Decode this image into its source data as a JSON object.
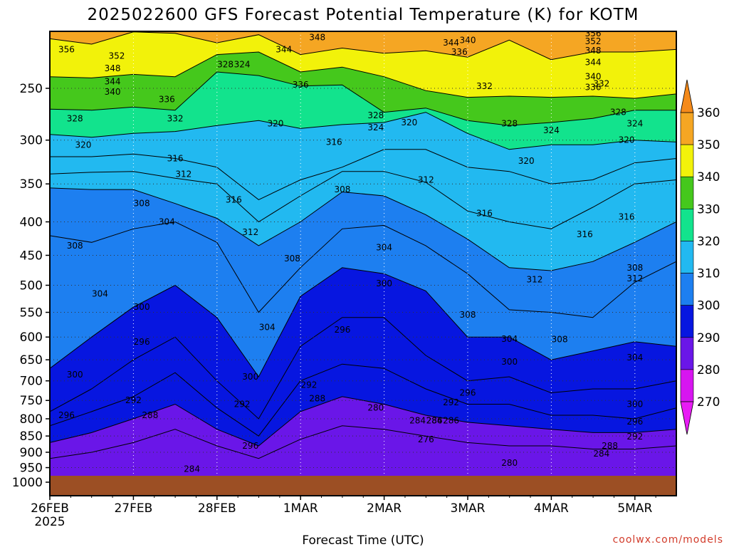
{
  "chart_data": {
    "type": "contour",
    "title": "2025022600 GFS Forecast Potential Temperature (K) for KOTM",
    "xlabel": "Forecast Time (UTC)",
    "ylabel": "",
    "credit": "coolwx.com/models",
    "x_ticks": [
      "26FEB",
      "27FEB",
      "28FEB",
      "1MAR",
      "2MAR",
      "3MAR",
      "4MAR",
      "5MAR"
    ],
    "x_tick_sub": "2025",
    "xlim_days": [
      0,
      7.5
    ],
    "y_ticks": [
      250,
      300,
      350,
      400,
      450,
      500,
      550,
      600,
      650,
      700,
      750,
      800,
      850,
      900,
      950,
      1000
    ],
    "ylim_hpa": [
      1000,
      200
    ],
    "colorbar": {
      "ticks": [
        360,
        350,
        340,
        330,
        320,
        310,
        300,
        290,
        280,
        270
      ],
      "bands": [
        {
          "low": 350,
          "high": 360,
          "color": "#f5a623"
        },
        {
          "low": 340,
          "high": 350,
          "color": "#f2f20a"
        },
        {
          "low": 330,
          "high": 340,
          "color": "#45c81c"
        },
        {
          "low": 320,
          "high": 330,
          "color": "#12e38d"
        },
        {
          "low": 310,
          "high": 320,
          "color": "#22b9f0"
        },
        {
          "low": 300,
          "high": 310,
          "color": "#1d7ff0"
        },
        {
          "low": 290,
          "high": 300,
          "color": "#0716e0"
        },
        {
          "low": 280,
          "high": 290,
          "color": "#6a16e8"
        },
        {
          "low": 270,
          "high": 280,
          "color": "#d715f0"
        }
      ],
      "over_color": "#f58a1a",
      "under_color": "#e81cf5"
    },
    "surface_color": "#9c4f24",
    "series": [
      {
        "contour": 348,
        "values": [
          210,
          214,
          205,
          206,
          213,
          207,
          222,
          217,
          221,
          219,
          224,
          211,
          226,
          220,
          220,
          218
        ]
      },
      {
        "contour": 336,
        "values": [
          240,
          241,
          238,
          240,
          222,
          220,
          236,
          232,
          240,
          252,
          258,
          257,
          258,
          257,
          259,
          255
        ]
      },
      {
        "contour": 328,
        "values": [
          269,
          270,
          267,
          270,
          236,
          239,
          248,
          247,
          272,
          268,
          280,
          285,
          282,
          278,
          270,
          270
        ]
      },
      {
        "contour": 320,
        "values": [
          294,
          297,
          293,
          291,
          285,
          280,
          288,
          284,
          282,
          272,
          293,
          310,
          305,
          305,
          300,
          302
        ]
      },
      {
        "contour": 316,
        "values": [
          318,
          318,
          315,
          320,
          330,
          370,
          345,
          330,
          310,
          310,
          330,
          335,
          350,
          345,
          325,
          320
        ]
      },
      {
        "contour": 312,
        "values": [
          338,
          336,
          335,
          343,
          350,
          400,
          365,
          335,
          335,
          348,
          385,
          400,
          410,
          380,
          350,
          345
        ]
      },
      {
        "contour": 308,
        "values": [
          355,
          357,
          357,
          375,
          395,
          435,
          400,
          360,
          365,
          390,
          425,
          470,
          475,
          460,
          430,
          400
        ]
      },
      {
        "contour": 304,
        "values": [
          420,
          430,
          410,
          400,
          430,
          550,
          470,
          410,
          405,
          435,
          480,
          545,
          550,
          560,
          495,
          460
        ]
      },
      {
        "contour": 300,
        "values": [
          670,
          600,
          540,
          500,
          560,
          690,
          520,
          470,
          480,
          510,
          600,
          600,
          650,
          630,
          610,
          620
        ]
      },
      {
        "contour": 296,
        "values": [
          780,
          720,
          650,
          600,
          700,
          800,
          620,
          560,
          560,
          640,
          700,
          690,
          730,
          720,
          720,
          700
        ]
      },
      {
        "contour": 292,
        "values": [
          820,
          780,
          740,
          680,
          770,
          850,
          700,
          660,
          670,
          720,
          760,
          760,
          790,
          790,
          800,
          770
        ]
      },
      {
        "contour": 288,
        "values": [
          870,
          840,
          800,
          760,
          830,
          880,
          780,
          740,
          760,
          790,
          810,
          820,
          830,
          840,
          840,
          830
        ]
      },
      {
        "contour": 284,
        "values": [
          920,
          900,
          870,
          830,
          880,
          920,
          860,
          820,
          830,
          850,
          870,
          880,
          880,
          890,
          890,
          880
        ]
      }
    ],
    "contour_labels": [
      {
        "text": "356",
        "day": 0.2,
        "hpa": 218
      },
      {
        "text": "352",
        "day": 0.8,
        "hpa": 223
      },
      {
        "text": "348",
        "day": 0.75,
        "hpa": 233
      },
      {
        "text": "344",
        "day": 0.75,
        "hpa": 244
      },
      {
        "text": "340",
        "day": 0.75,
        "hpa": 253
      },
      {
        "text": "336",
        "day": 1.4,
        "hpa": 260
      },
      {
        "text": "332",
        "day": 1.5,
        "hpa": 278
      },
      {
        "text": "328",
        "day": 0.3,
        "hpa": 278
      },
      {
        "text": "320",
        "day": 0.4,
        "hpa": 305
      },
      {
        "text": "316",
        "day": 1.5,
        "hpa": 320
      },
      {
        "text": "312",
        "day": 1.6,
        "hpa": 338
      },
      {
        "text": "308",
        "day": 1.1,
        "hpa": 375
      },
      {
        "text": "304",
        "day": 1.4,
        "hpa": 400
      },
      {
        "text": "308",
        "day": 0.3,
        "hpa": 435
      },
      {
        "text": "304",
        "day": 0.6,
        "hpa": 515
      },
      {
        "text": "300",
        "day": 1.1,
        "hpa": 540
      },
      {
        "text": "296",
        "day": 1.1,
        "hpa": 610
      },
      {
        "text": "300",
        "day": 0.3,
        "hpa": 685
      },
      {
        "text": "292",
        "day": 1.0,
        "hpa": 750
      },
      {
        "text": "288",
        "day": 1.2,
        "hpa": 790
      },
      {
        "text": "296",
        "day": 0.2,
        "hpa": 790
      },
      {
        "text": "284",
        "day": 1.7,
        "hpa": 955
      },
      {
        "text": "344",
        "day": 2.8,
        "hpa": 218
      },
      {
        "text": "348",
        "day": 3.2,
        "hpa": 209
      },
      {
        "text": "328",
        "day": 2.1,
        "hpa": 230
      },
      {
        "text": "324",
        "day": 2.3,
        "hpa": 230
      },
      {
        "text": "336",
        "day": 3.0,
        "hpa": 247
      },
      {
        "text": "320",
        "day": 2.7,
        "hpa": 283
      },
      {
        "text": "316",
        "day": 2.2,
        "hpa": 370
      },
      {
        "text": "312",
        "day": 2.4,
        "hpa": 415
      },
      {
        "text": "308",
        "day": 2.9,
        "hpa": 455
      },
      {
        "text": "304",
        "day": 2.6,
        "hpa": 580
      },
      {
        "text": "300",
        "day": 2.4,
        "hpa": 690
      },
      {
        "text": "292",
        "day": 2.3,
        "hpa": 760
      },
      {
        "text": "296",
        "day": 2.4,
        "hpa": 880
      },
      {
        "text": "316",
        "day": 3.4,
        "hpa": 302
      },
      {
        "text": "308",
        "day": 3.5,
        "hpa": 357
      },
      {
        "text": "304",
        "day": 4.0,
        "hpa": 438
      },
      {
        "text": "300",
        "day": 4.0,
        "hpa": 497
      },
      {
        "text": "296",
        "day": 3.5,
        "hpa": 585
      },
      {
        "text": "292",
        "day": 3.1,
        "hpa": 710
      },
      {
        "text": "288",
        "day": 3.2,
        "hpa": 745
      },
      {
        "text": "280",
        "day": 3.9,
        "hpa": 770
      },
      {
        "text": "284",
        "day": 4.6,
        "hpa": 805
      },
      {
        "text": "286",
        "day": 4.8,
        "hpa": 805
      },
      {
        "text": "276",
        "day": 4.5,
        "hpa": 860
      },
      {
        "text": "328",
        "day": 3.9,
        "hpa": 275
      },
      {
        "text": "324",
        "day": 3.9,
        "hpa": 287
      },
      {
        "text": "320",
        "day": 4.3,
        "hpa": 282
      },
      {
        "text": "312",
        "day": 4.5,
        "hpa": 345
      },
      {
        "text": "344",
        "day": 4.8,
        "hpa": 213
      },
      {
        "text": "340",
        "day": 5.0,
        "hpa": 211
      },
      {
        "text": "336",
        "day": 4.9,
        "hpa": 220
      },
      {
        "text": "332",
        "day": 5.2,
        "hpa": 248
      },
      {
        "text": "328",
        "day": 5.5,
        "hpa": 283
      },
      {
        "text": "324",
        "day": 6.0,
        "hpa": 290
      },
      {
        "text": "320",
        "day": 5.7,
        "hpa": 323
      },
      {
        "text": "316",
        "day": 5.2,
        "hpa": 388
      },
      {
        "text": "316",
        "day": 6.4,
        "hpa": 418
      },
      {
        "text": "312",
        "day": 5.8,
        "hpa": 490
      },
      {
        "text": "308",
        "day": 5.0,
        "hpa": 555
      },
      {
        "text": "308",
        "day": 6.1,
        "hpa": 605
      },
      {
        "text": "304",
        "day": 5.5,
        "hpa": 604
      },
      {
        "text": "300",
        "day": 5.5,
        "hpa": 655
      },
      {
        "text": "296",
        "day": 5.0,
        "hpa": 730
      },
      {
        "text": "292",
        "day": 4.8,
        "hpa": 755
      },
      {
        "text": "284",
        "day": 4.4,
        "hpa": 805
      },
      {
        "text": "286",
        "day": 4.6,
        "hpa": 805
      },
      {
        "text": "280",
        "day": 5.5,
        "hpa": 935
      },
      {
        "text": "300",
        "day": 7.0,
        "hpa": 760
      },
      {
        "text": "296",
        "day": 7.0,
        "hpa": 808
      },
      {
        "text": "292",
        "day": 7.0,
        "hpa": 852
      },
      {
        "text": "288",
        "day": 6.7,
        "hpa": 880
      },
      {
        "text": "284",
        "day": 6.6,
        "hpa": 905
      },
      {
        "text": "304",
        "day": 7.0,
        "hpa": 645
      },
      {
        "text": "308",
        "day": 7.0,
        "hpa": 470
      },
      {
        "text": "312",
        "day": 7.0,
        "hpa": 488
      },
      {
        "text": "316",
        "day": 6.9,
        "hpa": 393
      },
      {
        "text": "320",
        "day": 6.9,
        "hpa": 300
      },
      {
        "text": "324",
        "day": 7.0,
        "hpa": 283
      },
      {
        "text": "328",
        "day": 6.8,
        "hpa": 272
      },
      {
        "text": "332",
        "day": 6.6,
        "hpa": 246
      },
      {
        "text": "336",
        "day": 6.5,
        "hpa": 249
      },
      {
        "text": "340",
        "day": 6.5,
        "hpa": 240
      },
      {
        "text": "344",
        "day": 6.5,
        "hpa": 228
      },
      {
        "text": "348",
        "day": 6.5,
        "hpa": 219
      },
      {
        "text": "352",
        "day": 6.5,
        "hpa": 212
      },
      {
        "text": "356",
        "day": 6.5,
        "hpa": 206
      }
    ]
  }
}
